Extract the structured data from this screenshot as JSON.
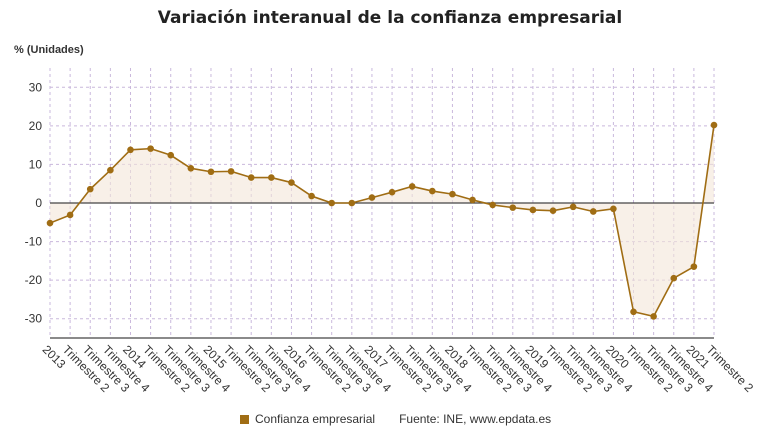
{
  "chart_data": {
    "type": "line",
    "title": "Variación interanual de la confianza empresarial",
    "ylabel": "% (Unidades)",
    "xlabel": "",
    "ylim": [
      -35,
      35
    ],
    "yticks": [
      30,
      20,
      10,
      0,
      -10,
      -20,
      -30
    ],
    "grid": true,
    "legend_position": "bottom",
    "categories": [
      "2013",
      "Trimestre 2",
      "Trimestre 3",
      "Trimestre 4",
      "2014",
      "Trimestre 2",
      "Trimestre 3",
      "Trimestre 4",
      "2015",
      "Trimestre 2",
      "Trimestre 3",
      "Trimestre 4",
      "2016",
      "Trimestre 2",
      "Trimestre 3",
      "Trimestre 4",
      "2017",
      "Trimestre 2",
      "Trimestre 3",
      "Trimestre 4",
      "2018",
      "Trimestre 2",
      "Trimestre 3",
      "Trimestre 4",
      "2019",
      "Trimestre 2",
      "Trimestre 3",
      "Trimestre 4",
      "2020",
      "Trimestre 2",
      "Trimestre 3",
      "Trimestre 4",
      "2021",
      "Trimestre 2"
    ],
    "series": [
      {
        "name": "Confianza empresarial",
        "color": "#a06d14",
        "values": [
          -5.2,
          -3.1,
          3.6,
          8.5,
          13.8,
          14.1,
          12.4,
          9.0,
          8.1,
          8.2,
          6.6,
          6.6,
          5.3,
          1.8,
          0.0,
          0.0,
          1.4,
          2.8,
          4.3,
          3.1,
          2.3,
          0.8,
          -0.5,
          -1.2,
          -1.8,
          -2.0,
          -1.0,
          -2.2,
          -1.5,
          -28.2,
          -29.4,
          -19.5,
          -16.5,
          20.2
        ]
      }
    ]
  },
  "legend": {
    "label": "Confianza empresarial",
    "color": "#a06d14"
  },
  "source": "Fuente: INE, www.epdata.es"
}
